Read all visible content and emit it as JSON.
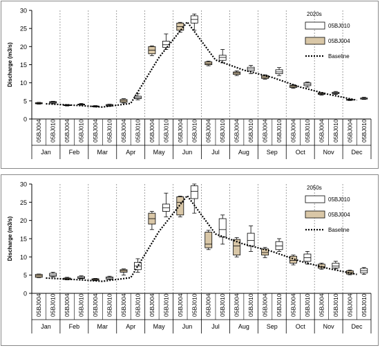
{
  "months": [
    "Jan",
    "Feb",
    "Mar",
    "Apr",
    "May",
    "Jun",
    "Jul",
    "Aug",
    "Sep",
    "Oct",
    "Nov",
    "Dec"
  ],
  "stations": [
    "05BJ004",
    "05BJ010"
  ],
  "ylabel": "Discharge (m3/s)",
  "yticks": [
    0,
    5,
    10,
    15,
    20,
    25,
    30
  ],
  "ylim": [
    0,
    30
  ],
  "colors": {
    "05BJ004": "#d9c7a7",
    "05BJ010": "#ffffff",
    "box_stroke": "#000000",
    "grid": "#777777"
  },
  "chart_data": [
    {
      "type": "box",
      "title": "2020s",
      "legend": {
        "items": [
          "05BJ010",
          "05BJ004",
          "Baseline"
        ],
        "position": "top-right"
      },
      "baseline": [
        4.2,
        3.8,
        3.3,
        4.3,
        17.0,
        26.8,
        16.3,
        13.5,
        11.5,
        8.8,
        6.8,
        5.2
      ],
      "boxes": [
        {
          "month": "Jan",
          "station": "05BJ004",
          "min": 4.1,
          "q1": 4.2,
          "median": 4.3,
          "q3": 4.5,
          "max": 4.6
        },
        {
          "month": "Jan",
          "station": "05BJ010",
          "min": 4.2,
          "q1": 4.4,
          "median": 4.6,
          "q3": 4.8,
          "max": 4.9
        },
        {
          "month": "Feb",
          "station": "05BJ004",
          "min": 3.6,
          "q1": 3.7,
          "median": 3.8,
          "q3": 3.9,
          "max": 4.0
        },
        {
          "month": "Feb",
          "station": "05BJ010",
          "min": 3.8,
          "q1": 3.9,
          "median": 4.0,
          "q3": 4.1,
          "max": 4.3
        },
        {
          "month": "Mar",
          "station": "05BJ004",
          "min": 3.3,
          "q1": 3.4,
          "median": 3.5,
          "q3": 3.6,
          "max": 3.7
        },
        {
          "month": "Mar",
          "station": "05BJ010",
          "min": 3.5,
          "q1": 3.6,
          "median": 3.8,
          "q3": 4.0,
          "max": 4.1
        },
        {
          "month": "Apr",
          "station": "05BJ004",
          "min": 4.4,
          "q1": 4.6,
          "median": 5.0,
          "q3": 5.4,
          "max": 5.6
        },
        {
          "month": "Apr",
          "station": "05BJ010",
          "min": 5.3,
          "q1": 5.6,
          "median": 5.9,
          "q3": 6.3,
          "max": 7.0
        },
        {
          "month": "May",
          "station": "05BJ004",
          "min": 17.5,
          "q1": 18.0,
          "median": 19.0,
          "q3": 20.0,
          "max": 20.2
        },
        {
          "month": "May",
          "station": "05BJ010",
          "min": 19.2,
          "q1": 19.8,
          "median": 20.5,
          "q3": 21.5,
          "max": 23.5
        },
        {
          "month": "Jun",
          "station": "05BJ004",
          "min": 24.0,
          "q1": 24.5,
          "median": 25.5,
          "q3": 26.5,
          "max": 26.7
        },
        {
          "month": "Jun",
          "station": "05BJ010",
          "min": 24.5,
          "q1": 26.5,
          "median": 27.5,
          "q3": 28.5,
          "max": 29.0
        },
        {
          "month": "Jul",
          "station": "05BJ004",
          "min": 14.7,
          "q1": 15.0,
          "median": 15.3,
          "q3": 15.8,
          "max": 16.0
        },
        {
          "month": "Jul",
          "station": "05BJ010",
          "min": 15.5,
          "q1": 16.2,
          "median": 17.0,
          "q3": 17.6,
          "max": 19.2
        },
        {
          "month": "Aug",
          "station": "05BJ004",
          "min": 12.0,
          "q1": 12.3,
          "median": 12.7,
          "q3": 13.0,
          "max": 13.3
        },
        {
          "month": "Aug",
          "station": "05BJ010",
          "min": 12.5,
          "q1": 13.3,
          "median": 13.8,
          "q3": 14.3,
          "max": 14.8
        },
        {
          "month": "Sep",
          "station": "05BJ004",
          "min": 11.0,
          "q1": 11.2,
          "median": 11.6,
          "q3": 12.0,
          "max": 12.2
        },
        {
          "month": "Sep",
          "station": "05BJ010",
          "min": 12.0,
          "q1": 12.5,
          "median": 13.0,
          "q3": 13.6,
          "max": 14.2
        },
        {
          "month": "Oct",
          "station": "05BJ004",
          "min": 8.5,
          "q1": 8.7,
          "median": 9.0,
          "q3": 9.3,
          "max": 9.5
        },
        {
          "month": "Oct",
          "station": "05BJ010",
          "min": 8.8,
          "q1": 9.2,
          "median": 9.6,
          "q3": 10.0,
          "max": 10.2
        },
        {
          "month": "Nov",
          "station": "05BJ004",
          "min": 6.6,
          "q1": 6.8,
          "median": 7.0,
          "q3": 7.2,
          "max": 7.3
        },
        {
          "month": "Nov",
          "station": "05BJ010",
          "min": 6.8,
          "q1": 7.0,
          "median": 7.2,
          "q3": 7.4,
          "max": 7.6
        },
        {
          "month": "Dec",
          "station": "05BJ004",
          "min": 5.1,
          "q1": 5.2,
          "median": 5.3,
          "q3": 5.4,
          "max": 5.5
        },
        {
          "month": "Dec",
          "station": "05BJ010",
          "min": 5.4,
          "q1": 5.5,
          "median": 5.7,
          "q3": 5.8,
          "max": 6.0
        }
      ]
    },
    {
      "type": "box",
      "title": "2050s",
      "legend": {
        "items": [
          "05BJ010",
          "05BJ004",
          "Baseline"
        ],
        "position": "top-right"
      },
      "baseline": [
        4.2,
        3.8,
        3.3,
        4.3,
        17.0,
        26.8,
        16.3,
        13.5,
        11.5,
        8.8,
        6.8,
        5.2
      ],
      "boxes": [
        {
          "month": "Jan",
          "station": "05BJ004",
          "min": 4.3,
          "q1": 4.4,
          "median": 4.8,
          "q3": 5.2,
          "max": 5.3
        },
        {
          "month": "Jan",
          "station": "05BJ010",
          "min": 4.5,
          "q1": 4.7,
          "median": 5.0,
          "q3": 5.5,
          "max": 5.8
        },
        {
          "month": "Feb",
          "station": "05BJ004",
          "min": 3.7,
          "q1": 3.8,
          "median": 4.0,
          "q3": 4.2,
          "max": 4.4
        },
        {
          "month": "Feb",
          "station": "05BJ010",
          "min": 4.0,
          "q1": 4.1,
          "median": 4.3,
          "q3": 4.6,
          "max": 4.8
        },
        {
          "month": "Mar",
          "station": "05BJ004",
          "min": 3.5,
          "q1": 3.6,
          "median": 3.8,
          "q3": 4.0,
          "max": 4.1
        },
        {
          "month": "Mar",
          "station": "05BJ010",
          "min": 3.8,
          "q1": 3.9,
          "median": 4.2,
          "q3": 4.5,
          "max": 4.7
        },
        {
          "month": "Apr",
          "station": "05BJ004",
          "min": 5.0,
          "q1": 5.8,
          "median": 6.2,
          "q3": 6.5,
          "max": 6.7
        },
        {
          "month": "Apr",
          "station": "05BJ010",
          "min": 5.8,
          "q1": 6.5,
          "median": 7.5,
          "q3": 8.5,
          "max": 9.5
        },
        {
          "month": "May",
          "station": "05BJ004",
          "min": 17.5,
          "q1": 19.0,
          "median": 20.5,
          "q3": 22.0,
          "max": 22.5
        },
        {
          "month": "May",
          "station": "05BJ010",
          "min": 21.0,
          "q1": 22.5,
          "median": 23.5,
          "q3": 24.5,
          "max": 27.5
        },
        {
          "month": "Jun",
          "station": "05BJ004",
          "min": 21.0,
          "q1": 21.5,
          "median": 25.0,
          "q3": 26.5,
          "max": 26.7
        },
        {
          "month": "Jun",
          "station": "05BJ010",
          "min": 22.0,
          "q1": 26.0,
          "median": 28.0,
          "q3": 29.5,
          "max": 30.0
        },
        {
          "month": "Jul",
          "station": "05BJ004",
          "min": 12.0,
          "q1": 12.5,
          "median": 13.5,
          "q3": 16.8,
          "max": 17.3
        },
        {
          "month": "Jul",
          "station": "05BJ010",
          "min": 13.5,
          "q1": 15.5,
          "median": 17.5,
          "q3": 20.5,
          "max": 21.5
        },
        {
          "month": "Aug",
          "station": "05BJ004",
          "min": 10.0,
          "q1": 10.5,
          "median": 13.0,
          "q3": 14.8,
          "max": 15.3
        },
        {
          "month": "Aug",
          "station": "05BJ010",
          "min": 11.5,
          "q1": 13.0,
          "median": 14.5,
          "q3": 16.5,
          "max": 18.5
        },
        {
          "month": "Sep",
          "station": "05BJ004",
          "min": 9.8,
          "q1": 10.5,
          "median": 11.2,
          "q3": 12.2,
          "max": 12.6
        },
        {
          "month": "Sep",
          "station": "05BJ010",
          "min": 11.5,
          "q1": 12.0,
          "median": 13.0,
          "q3": 14.2,
          "max": 15.0
        },
        {
          "month": "Oct",
          "station": "05BJ004",
          "min": 7.8,
          "q1": 8.3,
          "median": 9.0,
          "q3": 10.2,
          "max": 10.5
        },
        {
          "month": "Oct",
          "station": "05BJ010",
          "min": 8.0,
          "q1": 8.8,
          "median": 9.8,
          "q3": 10.8,
          "max": 11.5
        },
        {
          "month": "Nov",
          "station": "05BJ004",
          "min": 6.6,
          "q1": 6.9,
          "median": 7.3,
          "q3": 8.0,
          "max": 8.3
        },
        {
          "month": "Nov",
          "station": "05BJ010",
          "min": 6.7,
          "q1": 7.0,
          "median": 7.5,
          "q3": 8.3,
          "max": 8.8
        },
        {
          "month": "Dec",
          "station": "05BJ004",
          "min": 5.1,
          "q1": 5.3,
          "median": 5.7,
          "q3": 6.2,
          "max": 6.4
        },
        {
          "month": "Dec",
          "station": "05BJ010",
          "min": 5.2,
          "q1": 5.6,
          "median": 6.2,
          "q3": 6.8,
          "max": 7.1
        }
      ]
    }
  ]
}
